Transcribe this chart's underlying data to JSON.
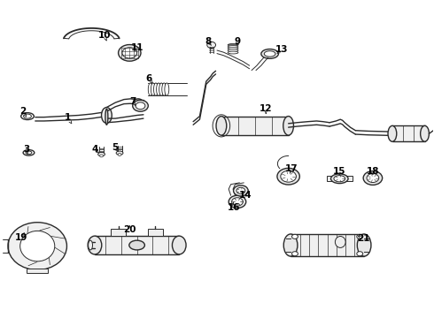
{
  "background_color": "#ffffff",
  "line_color": "#2a2a2a",
  "label_color": "#000000",
  "fig_width": 4.9,
  "fig_height": 3.6,
  "dpi": 100,
  "label_fontsize": 7.5,
  "label_positions": {
    "1": [
      0.155,
      0.63,
      0.165,
      0.61
    ],
    "2": [
      0.052,
      0.65,
      0.06,
      0.632
    ],
    "3": [
      0.06,
      0.53,
      0.063,
      0.515
    ],
    "4": [
      0.218,
      0.53,
      0.228,
      0.518
    ],
    "5": [
      0.265,
      0.535,
      0.272,
      0.523
    ],
    "6": [
      0.342,
      0.755,
      0.352,
      0.738
    ],
    "7": [
      0.305,
      0.682,
      0.312,
      0.668
    ],
    "8": [
      0.48,
      0.87,
      0.487,
      0.858
    ],
    "9": [
      0.548,
      0.872,
      0.545,
      0.858
    ],
    "10": [
      0.24,
      0.89,
      0.245,
      0.872
    ],
    "11": [
      0.315,
      0.852,
      0.308,
      0.84
    ],
    "12": [
      0.613,
      0.66,
      0.613,
      0.642
    ],
    "13": [
      0.65,
      0.845,
      0.638,
      0.832
    ],
    "14": [
      0.565,
      0.385,
      0.557,
      0.4
    ],
    "15": [
      0.783,
      0.46,
      0.783,
      0.446
    ],
    "16": [
      0.538,
      0.348,
      0.538,
      0.363
    ],
    "17": [
      0.672,
      0.468,
      0.668,
      0.454
    ],
    "18": [
      0.86,
      0.462,
      0.86,
      0.448
    ],
    "19": [
      0.048,
      0.252,
      0.055,
      0.268
    ],
    "20": [
      0.298,
      0.278,
      0.298,
      0.292
    ],
    "21": [
      0.838,
      0.248,
      0.825,
      0.258
    ]
  }
}
